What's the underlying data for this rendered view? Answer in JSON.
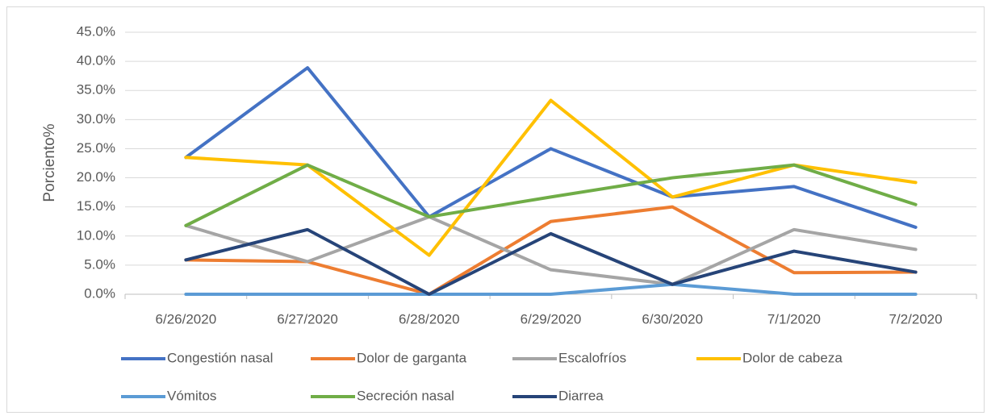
{
  "chart_data": {
    "type": "line",
    "y_label": "Porciento%",
    "categories": [
      "6/26/2020",
      "6/27/2020",
      "6/28/2020",
      "6/29/2020",
      "6/30/2020",
      "7/1/2020",
      "7/2/2020"
    ],
    "series": [
      {
        "name": "Congestión nasal",
        "color": "#4472c4",
        "values": [
          23.5,
          38.9,
          13.3,
          25.0,
          16.7,
          18.5,
          11.5
        ]
      },
      {
        "name": "Dolor de garganta",
        "color": "#ed7d31",
        "values": [
          5.9,
          5.6,
          0,
          12.5,
          15.0,
          3.7,
          3.8
        ]
      },
      {
        "name": "Escalofríos",
        "color": "#a5a5a5",
        "values": [
          11.8,
          5.6,
          13.3,
          4.2,
          1.7,
          11.1,
          7.7
        ]
      },
      {
        "name": "Dolor de cabeza",
        "color": "#ffc000",
        "values": [
          23.5,
          22.2,
          6.7,
          33.3,
          16.7,
          22.2,
          19.2
        ]
      },
      {
        "name": "Vómitos",
        "color": "#5b9bd5",
        "values": [
          0,
          0,
          0,
          0,
          1.7,
          0,
          0
        ]
      },
      {
        "name": "Secreción nasal",
        "color": "#70ad47",
        "values": [
          11.8,
          22.2,
          13.3,
          16.7,
          20.0,
          22.2,
          15.4
        ]
      },
      {
        "name": "Diarrea",
        "color": "#264478",
        "values": [
          5.9,
          11.1,
          0,
          10.4,
          1.7,
          7.4,
          3.8
        ]
      }
    ],
    "ylim": [
      0,
      45
    ],
    "yticks": [
      {
        "value": 0,
        "label": "0.0%"
      },
      {
        "value": 5,
        "label": "5.0%"
      },
      {
        "value": 10,
        "label": "10.0%"
      },
      {
        "value": 15,
        "label": "15.0%"
      },
      {
        "value": 20,
        "label": "20.0%"
      },
      {
        "value": 25,
        "label": "25.0%"
      },
      {
        "value": 30,
        "label": "30.0%"
      },
      {
        "value": 35,
        "label": "35.0%"
      },
      {
        "value": 40,
        "label": "40.0%"
      },
      {
        "value": 45,
        "label": "45.0%"
      }
    ],
    "grid": true,
    "legend": "bottom"
  }
}
